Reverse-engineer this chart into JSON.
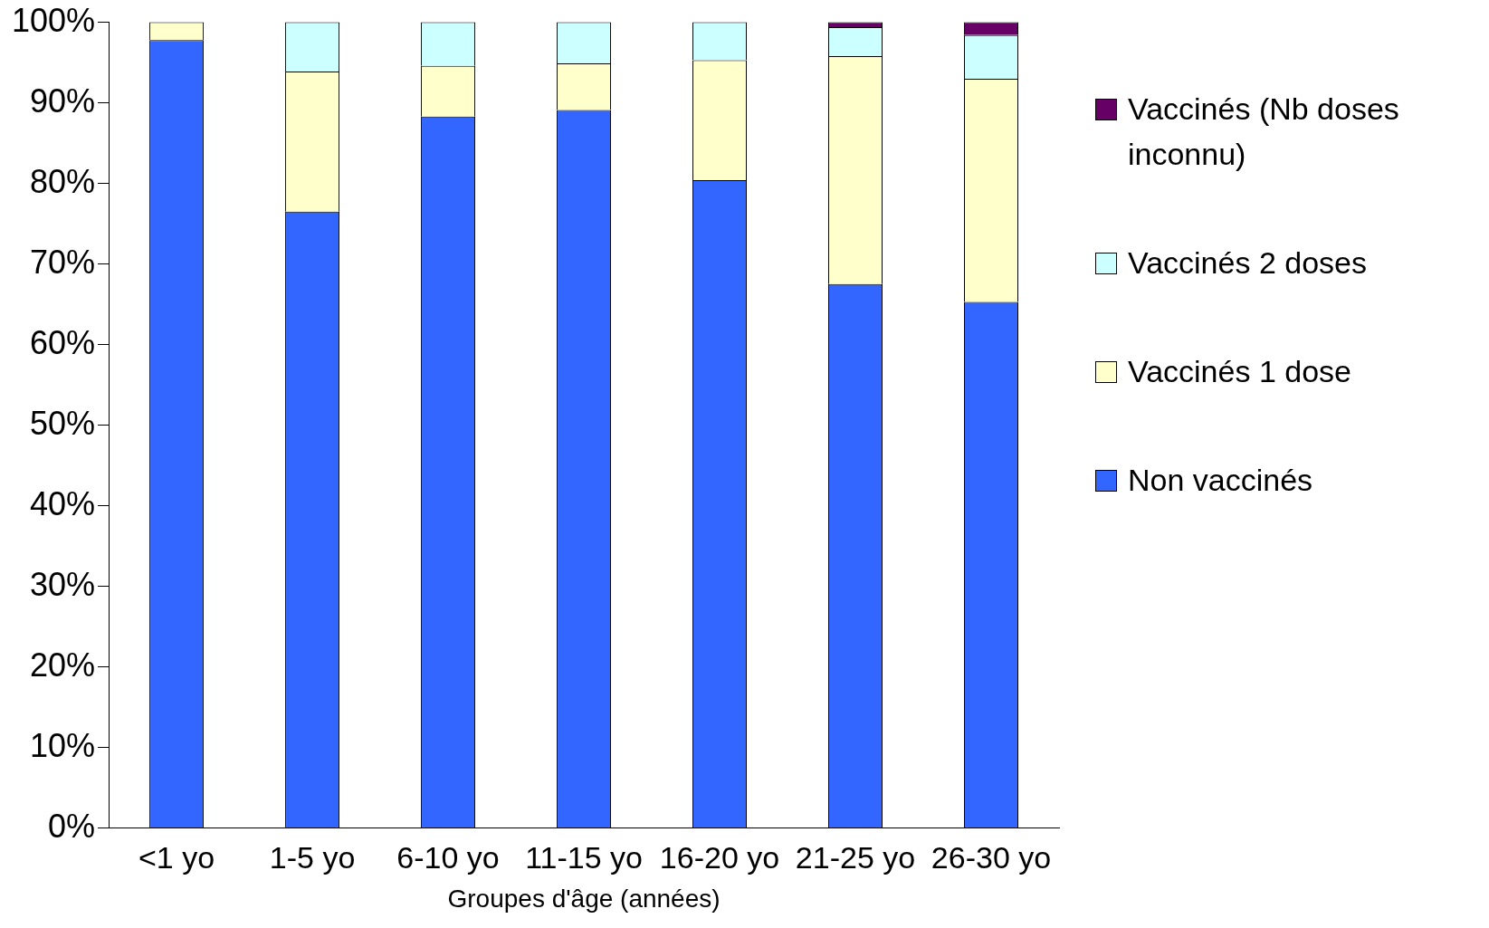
{
  "chart_data": {
    "type": "bar",
    "stacked": true,
    "xlabel": "Groupes d'âge (années)",
    "categories": [
      "<1 yo",
      "1-5 yo",
      "6-10 yo",
      "11-15 yo",
      "16-20 yo",
      "21-25 yo",
      "26-30 yo"
    ],
    "series": [
      {
        "name": "Non vaccinés",
        "color": "#3366ff",
        "values": [
          97.8,
          76.5,
          88.3,
          89.1,
          80.4,
          67.5,
          65.3
        ]
      },
      {
        "name": "Vaccinés 1 dose",
        "color": "#ffffcc",
        "values": [
          2.2,
          17.4,
          6.3,
          5.8,
          14.9,
          28.3,
          27.7
        ]
      },
      {
        "name": "Vaccinés 2 doses",
        "color": "#ccffff",
        "values": [
          0,
          6.1,
          5.4,
          5.1,
          4.7,
          3.6,
          5.4
        ]
      },
      {
        "name": "Vaccinés (Nb doses inconnu)",
        "color": "#660066",
        "values": [
          0,
          0,
          0,
          0,
          0,
          0.6,
          1.6
        ]
      }
    ],
    "ylim": [
      0,
      100
    ],
    "yticks": [
      {
        "value": 0,
        "label": "0%"
      },
      {
        "value": 10,
        "label": "10%"
      },
      {
        "value": 20,
        "label": "20%"
      },
      {
        "value": 30,
        "label": "30%"
      },
      {
        "value": 40,
        "label": "40%"
      },
      {
        "value": 50,
        "label": "50%"
      },
      {
        "value": 60,
        "label": "60%"
      },
      {
        "value": 70,
        "label": "70%"
      },
      {
        "value": 80,
        "label": "80%"
      },
      {
        "value": 90,
        "label": "90%"
      },
      {
        "value": 100,
        "label": "100%"
      }
    ],
    "grid": false,
    "legend": "right"
  }
}
